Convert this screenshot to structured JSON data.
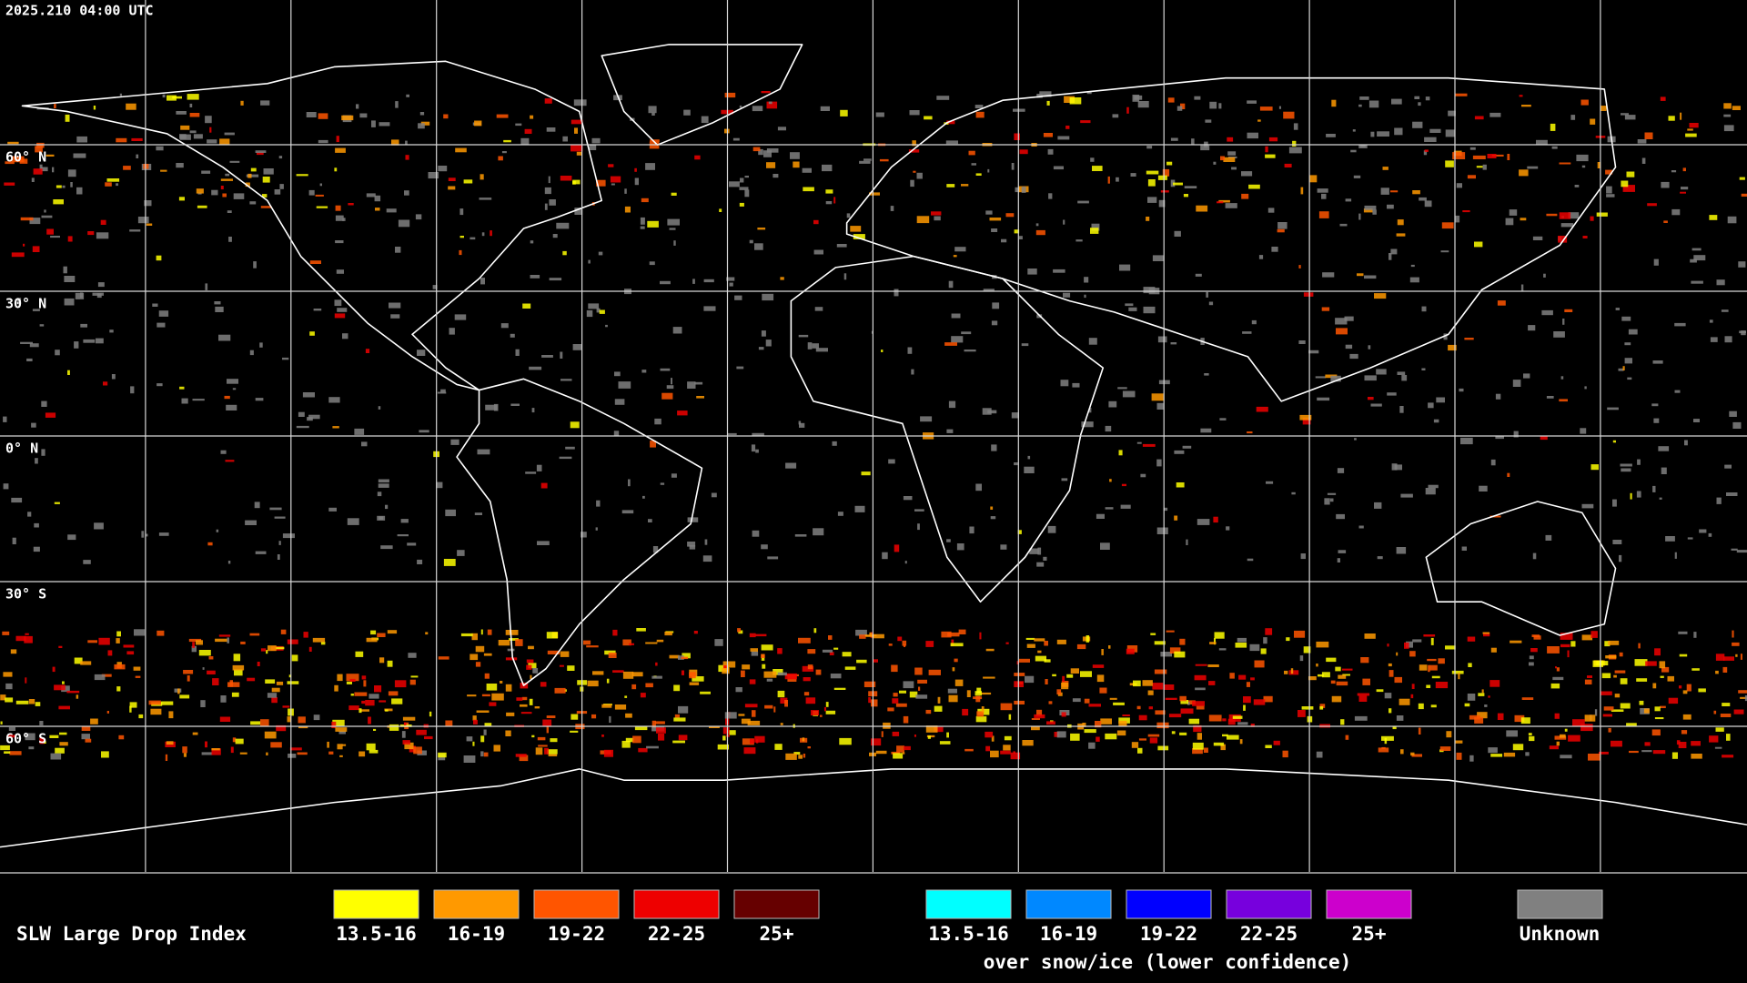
{
  "header": {
    "timestamp": "2025.210 04:00 UTC"
  },
  "map": {
    "latitude_labels": [
      "60° N",
      "30° N",
      "0° N",
      "30° S",
      "60° S"
    ]
  },
  "legend": {
    "title": "SLW Large Drop Index",
    "items": [
      {
        "label": "13.5-16",
        "color": "#ffff00"
      },
      {
        "label": "16-19",
        "color": "#ff9900"
      },
      {
        "label": "19-22",
        "color": "#ff5500"
      },
      {
        "label": "22-25",
        "color": "#ee0000"
      },
      {
        "label": "25+",
        "color": "#660000"
      }
    ],
    "snow_ice_items": [
      {
        "label": "13.5-16",
        "color": "#00ffff"
      },
      {
        "label": "16-19",
        "color": "#0088ff"
      },
      {
        "label": "19-22",
        "color": "#0000ff"
      },
      {
        "label": "22-25",
        "color": "#7700dd"
      },
      {
        "label": "25+",
        "color": "#cc00cc"
      }
    ],
    "snow_ice_caption": "over snow/ice (lower confidence)",
    "unknown": {
      "label": "Unknown",
      "color": "#808080"
    }
  }
}
